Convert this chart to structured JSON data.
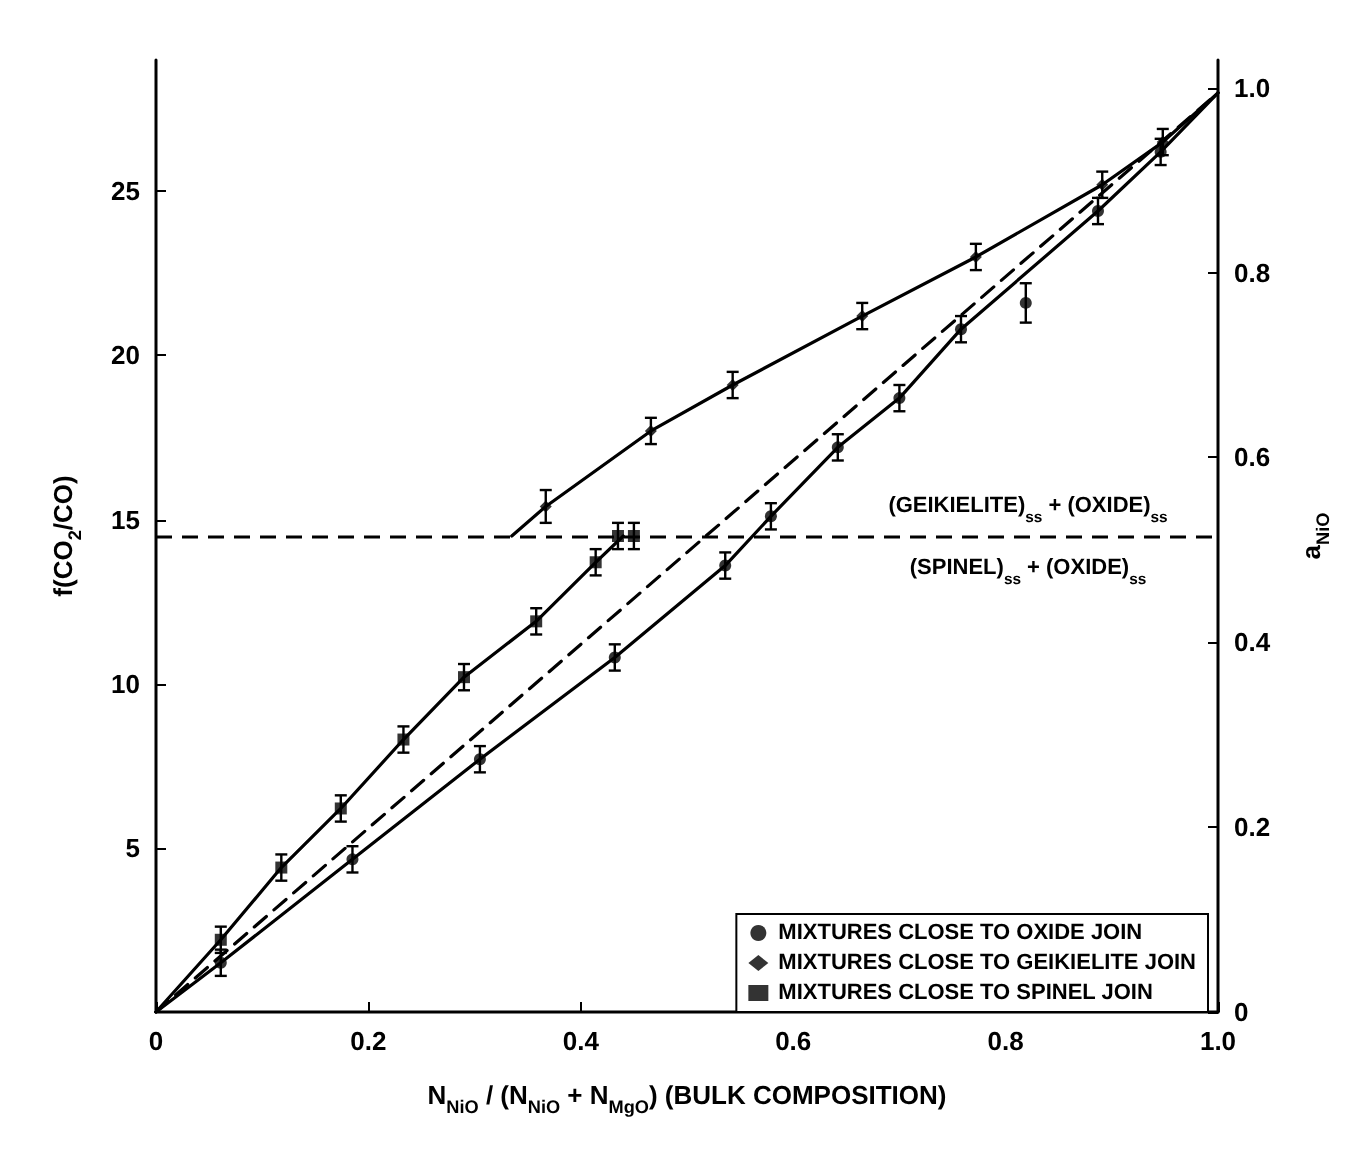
{
  "chart_data": {
    "type": "scatter",
    "xlabel": "N$_{NiO}$ / (N$_{NiO}$ + N$_{MgO}$) (BULK COMPOSITION)",
    "ylabel": "f(CO$_{2}$/CO)",
    "y2label": "a$_{NiO}$",
    "xlim": [
      0,
      1.0
    ],
    "xticks": [
      0,
      0.2,
      0.4,
      0.6,
      0.8,
      {
        "value": 1.0,
        "label": "1.0"
      }
    ],
    "ylim": [
      0,
      29
    ],
    "yticks": [
      5,
      10,
      15,
      20,
      25
    ],
    "y2lim": [
      0,
      1.03
    ],
    "y2ticks": [
      0,
      0.2,
      0.4,
      0.6,
      0.8,
      {
        "value": 1.0,
        "label": "1.0"
      }
    ],
    "grid": false,
    "legend": "bottom right",
    "series": [
      {
        "name": "MIXTURES CLOSE TO OXIDE JOIN",
        "color": "#000000",
        "marker": "circle",
        "x": [
          0.061,
          0.185,
          0.305,
          0.432,
          0.536,
          0.579,
          0.642,
          0.7,
          0.758,
          0.819,
          0.887,
          0.946
        ],
        "values": [
          1.5,
          4.65,
          7.7,
          10.8,
          13.6,
          15.1,
          17.2,
          18.7,
          20.8,
          21.6,
          24.4,
          26.2
        ],
        "errors": [
          0.4,
          0.4,
          0.4,
          0.4,
          0.4,
          0.4,
          0.4,
          0.4,
          0.4,
          0.6,
          0.4,
          0.4
        ]
      },
      {
        "name": "MIXTURES CLOSE TO GEIKIELITE JOIN",
        "color": "#000000",
        "marker": "diamond",
        "x": [
          0.367,
          0.466,
          0.543,
          0.665,
          0.772,
          0.891,
          0.948
        ],
        "values": [
          15.4,
          17.7,
          19.1,
          21.2,
          23.0,
          25.2,
          26.5
        ],
        "errors": [
          0.5,
          0.4,
          0.4,
          0.4,
          0.4,
          0.4,
          0.4
        ]
      },
      {
        "name": "MIXTURES CLOSE TO SPINEL JOIN",
        "color": "#000000",
        "marker": "square",
        "x": [
          0.061,
          0.118,
          0.174,
          0.233,
          0.29,
          0.358,
          0.414,
          0.435,
          0.45
        ],
        "values": [
          2.2,
          4.4,
          6.2,
          8.3,
          10.2,
          11.9,
          13.7,
          14.5,
          14.5
        ],
        "errors": [
          0.4,
          0.4,
          0.4,
          0.4,
          0.4,
          0.4,
          0.4,
          0.4,
          0.4
        ]
      },
      {
        "type": "line",
        "color": "#000000",
        "marker": "none",
        "line_style": "solid",
        "x": [
          0,
          0.061,
          0.185,
          0.305,
          0.432,
          0.536,
          0.579,
          0.642,
          0.7,
          0.758,
          0.887,
          0.946,
          1.0
        ],
        "values": [
          0,
          1.5,
          4.65,
          7.7,
          10.8,
          13.6,
          15.1,
          17.2,
          18.7,
          20.8,
          24.4,
          26.2,
          28.0
        ]
      },
      {
        "type": "line",
        "color": "#000000",
        "marker": "none",
        "line_style": "solid",
        "x": [
          0.335,
          0.367,
          0.466,
          0.543,
          0.665,
          0.772,
          0.891,
          0.948,
          1.0
        ],
        "values": [
          14.5,
          15.4,
          17.7,
          19.1,
          21.2,
          23.0,
          25.2,
          26.5,
          28.0
        ]
      },
      {
        "type": "line",
        "color": "#000000",
        "marker": "none",
        "line_style": "solid",
        "x": [
          0,
          0.061,
          0.118,
          0.174,
          0.233,
          0.29,
          0.358,
          0.414,
          0.44
        ],
        "values": [
          0,
          2.2,
          4.4,
          6.2,
          8.3,
          10.2,
          11.9,
          13.7,
          14.5
        ]
      },
      {
        "type": "line",
        "color": "#000000",
        "marker": "none",
        "line_style": "dashed",
        "x": [
          0,
          1.0
        ],
        "values": [
          0,
          28.0
        ]
      }
    ],
    "ref_lines": [
      {
        "axis": "y",
        "value": 14.5,
        "color": "#000000",
        "line_style": "dashed"
      }
    ],
    "annotations": [
      "(GEIKIELITE)$_{ss}$ + (OXIDE)$_{ss}$",
      "(SPINEL)$_{ss}$ + (OXIDE)$_{ss}$"
    ]
  }
}
